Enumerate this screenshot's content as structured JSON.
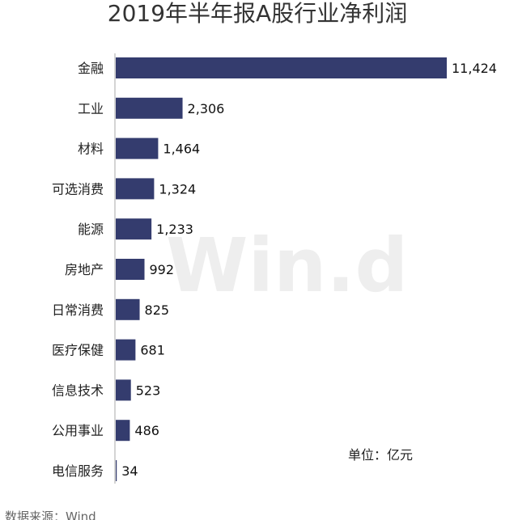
{
  "chart_data": {
    "type": "bar",
    "orientation": "horizontal",
    "title": "2019年半年报A股行业净利润",
    "categories": [
      "金融",
      "工业",
      "材料",
      "可选消费",
      "能源",
      "房地产",
      "日常消费",
      "医疗保健",
      "信息技术",
      "公用事业",
      "电信服务"
    ],
    "values": [
      11424,
      2306,
      1464,
      1324,
      1233,
      992,
      825,
      681,
      523,
      486,
      34
    ],
    "value_labels": [
      "11,424",
      "2,306",
      "1,464",
      "1,324",
      "1,233",
      "992",
      "825",
      "681",
      "523",
      "486",
      "34"
    ],
    "xlim": [
      0,
      11424
    ],
    "grid": false,
    "legend": "none",
    "unit": "单位：亿元",
    "source": "数据来源：Wind",
    "watermark": "Win.d",
    "bar_color": "#343c6e",
    "axis_color": "#aaaaaa"
  }
}
